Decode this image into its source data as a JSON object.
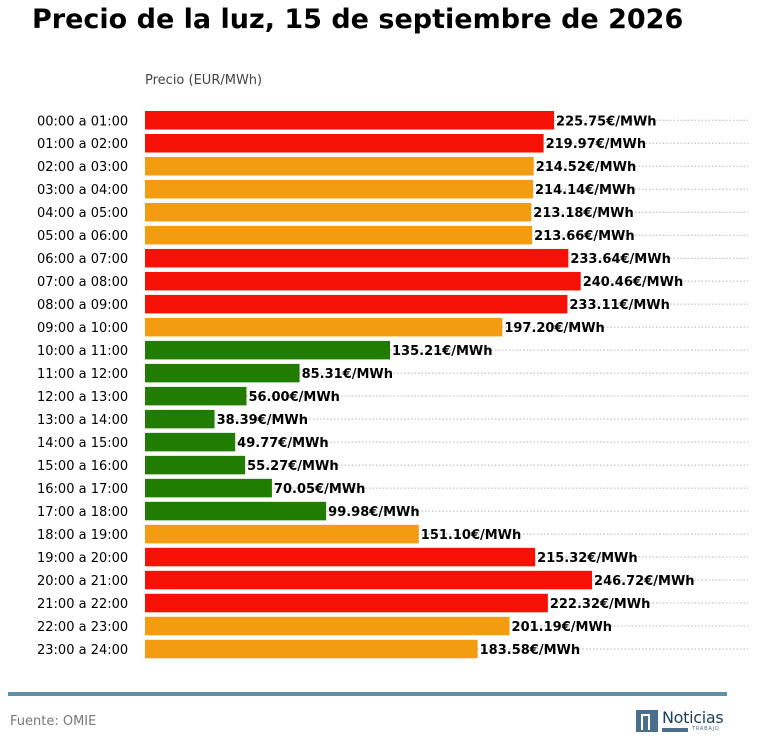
{
  "title": "Precio de la luz, 15 de septiembre de 2026",
  "source": "Fuente: OMIE",
  "logo": {
    "word": "Noticias",
    "sub": "TRABAJO"
  },
  "colors": {
    "high": "#f51105",
    "mid": "#f39c12",
    "low": "#217d02",
    "rule": "#5f8ea5"
  },
  "chart_data": {
    "type": "bar",
    "orientation": "horizontal",
    "title": "Precio de la luz, 15 de septiembre de 2026",
    "ylabel": "Precio (EUR/MWh)",
    "xlim": [
      0,
      340
    ],
    "grid": "dotted lines per row",
    "categories": [
      "00:00 a 01:00",
      "01:00 a 02:00",
      "02:00 a 03:00",
      "03:00 a 04:00",
      "04:00 a 05:00",
      "05:00 a 06:00",
      "06:00 a 07:00",
      "07:00 a 08:00",
      "08:00 a 09:00",
      "09:00 a 10:00",
      "10:00 a 11:00",
      "11:00 a 12:00",
      "12:00 a 13:00",
      "13:00 a 14:00",
      "14:00 a 15:00",
      "15:00 a 16:00",
      "16:00 a 17:00",
      "17:00 a 18:00",
      "18:00 a 19:00",
      "19:00 a 20:00",
      "20:00 a 21:00",
      "21:00 a 22:00",
      "22:00 a 23:00",
      "23:00 a 24:00"
    ],
    "values": [
      225.75,
      219.97,
      214.52,
      214.14,
      213.18,
      213.66,
      233.64,
      240.46,
      233.11,
      197.2,
      135.21,
      85.31,
      56.0,
      38.39,
      49.77,
      55.27,
      70.05,
      99.98,
      151.1,
      215.32,
      246.72,
      222.32,
      201.19,
      183.58
    ],
    "labels": [
      "225.75€/MWh",
      "219.97€/MWh",
      "214.52€/MWh",
      "214.14€/MWh",
      "213.18€/MWh",
      "213.66€/MWh",
      "233.64€/MWh",
      "240.46€/MWh",
      "233.11€/MWh",
      "197.20€/MWh",
      "135.21€/MWh",
      "85.31€/MWh",
      "56.00€/MWh",
      "38.39€/MWh",
      "49.77€/MWh",
      "55.27€/MWh",
      "70.05€/MWh",
      "99.98€/MWh",
      "151.10€/MWh",
      "215.32€/MWh",
      "246.72€/MWh",
      "222.32€/MWh",
      "201.19€/MWh",
      "183.58€/MWh"
    ],
    "levels": [
      "high",
      "high",
      "mid",
      "mid",
      "mid",
      "mid",
      "high",
      "high",
      "high",
      "mid",
      "low",
      "low",
      "low",
      "low",
      "low",
      "low",
      "low",
      "low",
      "mid",
      "high",
      "high",
      "high",
      "mid",
      "mid"
    ]
  }
}
